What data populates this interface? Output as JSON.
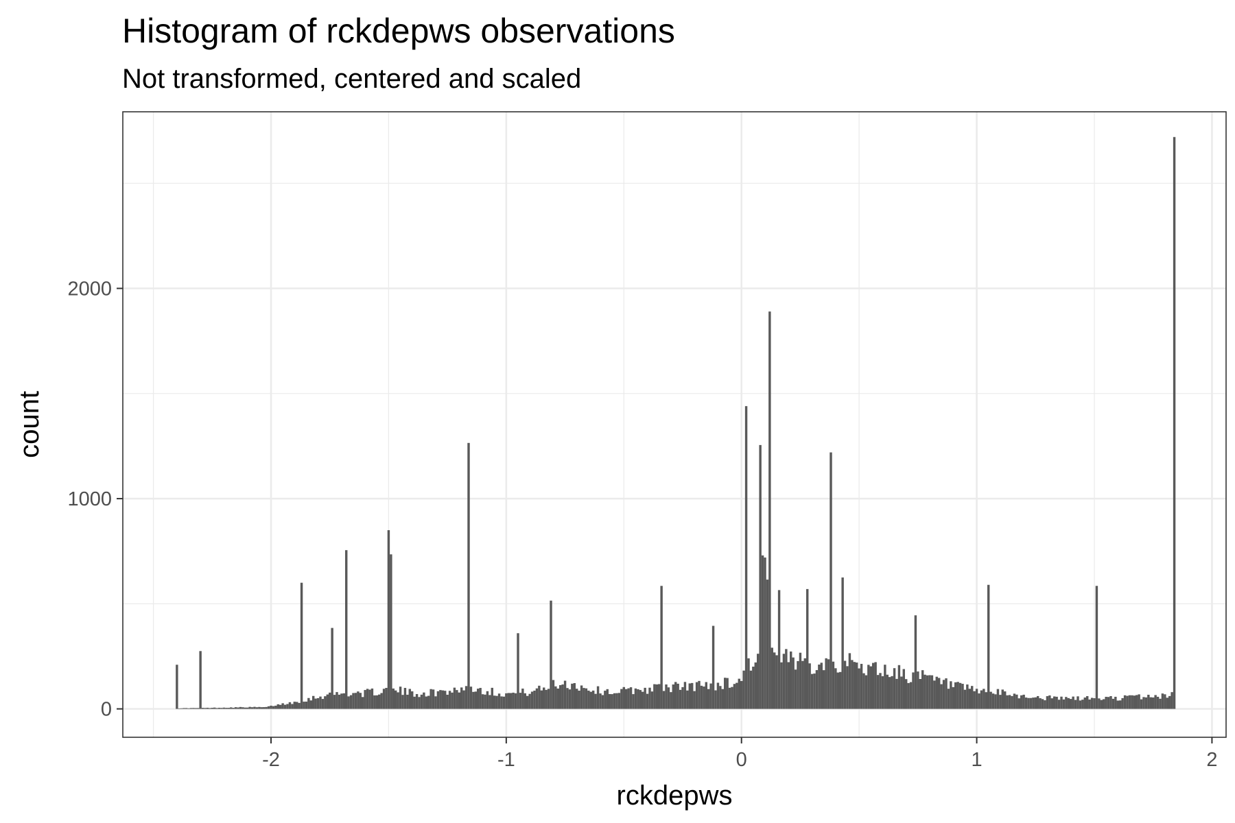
{
  "chart_data": {
    "type": "bar",
    "title": "Histogram of rckdepws observations",
    "subtitle": "Not transformed, centered and scaled",
    "xlabel": "rckdepws",
    "ylabel": "count",
    "xlim": [
      -2.63,
      2.06
    ],
    "ylim": [
      -135,
      2840
    ],
    "x_ticks": [
      {
        "value": -2,
        "label": "-2"
      },
      {
        "value": -1,
        "label": "-1"
      },
      {
        "value": 0,
        "label": "0"
      },
      {
        "value": 1,
        "label": "1"
      },
      {
        "value": 2,
        "label": "2"
      }
    ],
    "y_ticks": [
      {
        "value": 0,
        "label": "0"
      },
      {
        "value": 1000,
        "label": "1000"
      },
      {
        "value": 2000,
        "label": "2000"
      }
    ],
    "x_minor_breaks": [
      -2.5,
      -1.5,
      -0.5,
      0.5,
      1.5
    ],
    "y_minor_breaks": [
      500,
      1500,
      2500
    ],
    "grid": true,
    "bar_color": "#595959",
    "bin_width": 0.01,
    "x_range": [
      -2.4,
      1.84
    ],
    "background_density": [
      [
        -2.4,
        3
      ],
      [
        -2.3,
        4
      ],
      [
        -2.2,
        6
      ],
      [
        -2.1,
        8
      ],
      [
        -2.02,
        8
      ],
      [
        -1.98,
        18
      ],
      [
        -1.94,
        25
      ],
      [
        -1.9,
        32
      ],
      [
        -1.85,
        45
      ],
      [
        -1.8,
        58
      ],
      [
        -1.75,
        68
      ],
      [
        -1.7,
        72
      ],
      [
        -1.65,
        75
      ],
      [
        -1.6,
        75
      ],
      [
        -1.55,
        82
      ],
      [
        -1.5,
        90
      ],
      [
        -1.45,
        85
      ],
      [
        -1.4,
        75
      ],
      [
        -1.35,
        75
      ],
      [
        -1.3,
        78
      ],
      [
        -1.25,
        85
      ],
      [
        -1.2,
        95
      ],
      [
        -1.15,
        100
      ],
      [
        -1.1,
        90
      ],
      [
        -1.05,
        80
      ],
      [
        -1.0,
        72
      ],
      [
        -0.95,
        75
      ],
      [
        -0.9,
        82
      ],
      [
        -0.85,
        92
      ],
      [
        -0.8,
        115
      ],
      [
        -0.75,
        122
      ],
      [
        -0.7,
        112
      ],
      [
        -0.65,
        95
      ],
      [
        -0.6,
        85
      ],
      [
        -0.55,
        82
      ],
      [
        -0.5,
        85
      ],
      [
        -0.45,
        90
      ],
      [
        -0.4,
        95
      ],
      [
        -0.35,
        100
      ],
      [
        -0.3,
        105
      ],
      [
        -0.25,
        105
      ],
      [
        -0.2,
        110
      ],
      [
        -0.15,
        112
      ],
      [
        -0.1,
        118
      ],
      [
        -0.05,
        125
      ],
      [
        0.0,
        140
      ],
      [
        0.02,
        210
      ],
      [
        0.05,
        230
      ],
      [
        0.08,
        250
      ],
      [
        0.1,
        260
      ],
      [
        0.15,
        245
      ],
      [
        0.2,
        225
      ],
      [
        0.25,
        215
      ],
      [
        0.3,
        220
      ],
      [
        0.35,
        230
      ],
      [
        0.4,
        225
      ],
      [
        0.45,
        215
      ],
      [
        0.5,
        205
      ],
      [
        0.55,
        195
      ],
      [
        0.6,
        185
      ],
      [
        0.65,
        175
      ],
      [
        0.7,
        165
      ],
      [
        0.75,
        155
      ],
      [
        0.8,
        140
      ],
      [
        0.85,
        125
      ],
      [
        0.9,
        108
      ],
      [
        0.95,
        95
      ],
      [
        1.0,
        85
      ],
      [
        1.05,
        80
      ],
      [
        1.1,
        75
      ],
      [
        1.15,
        68
      ],
      [
        1.2,
        60
      ],
      [
        1.25,
        55
      ],
      [
        1.3,
        52
      ],
      [
        1.35,
        50
      ],
      [
        1.4,
        50
      ],
      [
        1.45,
        50
      ],
      [
        1.5,
        50
      ],
      [
        1.55,
        50
      ],
      [
        1.6,
        52
      ],
      [
        1.65,
        55
      ],
      [
        1.7,
        58
      ],
      [
        1.75,
        60
      ],
      [
        1.8,
        60
      ],
      [
        1.84,
        80
      ]
    ],
    "spikes": [
      {
        "x": -2.4,
        "count": 210
      },
      {
        "x": -2.3,
        "count": 275
      },
      {
        "x": -1.87,
        "count": 600
      },
      {
        "x": -1.74,
        "count": 385
      },
      {
        "x": -1.68,
        "count": 755
      },
      {
        "x": -1.5,
        "count": 850
      },
      {
        "x": -1.49,
        "count": 735
      },
      {
        "x": -1.16,
        "count": 1265
      },
      {
        "x": -0.95,
        "count": 360
      },
      {
        "x": -0.81,
        "count": 515
      },
      {
        "x": -0.34,
        "count": 585
      },
      {
        "x": -0.12,
        "count": 395
      },
      {
        "x": 0.02,
        "count": 1440
      },
      {
        "x": 0.08,
        "count": 1255
      },
      {
        "x": 0.09,
        "count": 730
      },
      {
        "x": 0.1,
        "count": 720
      },
      {
        "x": 0.11,
        "count": 615
      },
      {
        "x": 0.12,
        "count": 1890
      },
      {
        "x": 0.16,
        "count": 565
      },
      {
        "x": 0.28,
        "count": 570
      },
      {
        "x": 0.38,
        "count": 1220
      },
      {
        "x": 0.43,
        "count": 625
      },
      {
        "x": 0.74,
        "count": 445
      },
      {
        "x": 1.05,
        "count": 590
      },
      {
        "x": 1.51,
        "count": 585
      },
      {
        "x": 1.84,
        "count": 2720
      }
    ]
  }
}
